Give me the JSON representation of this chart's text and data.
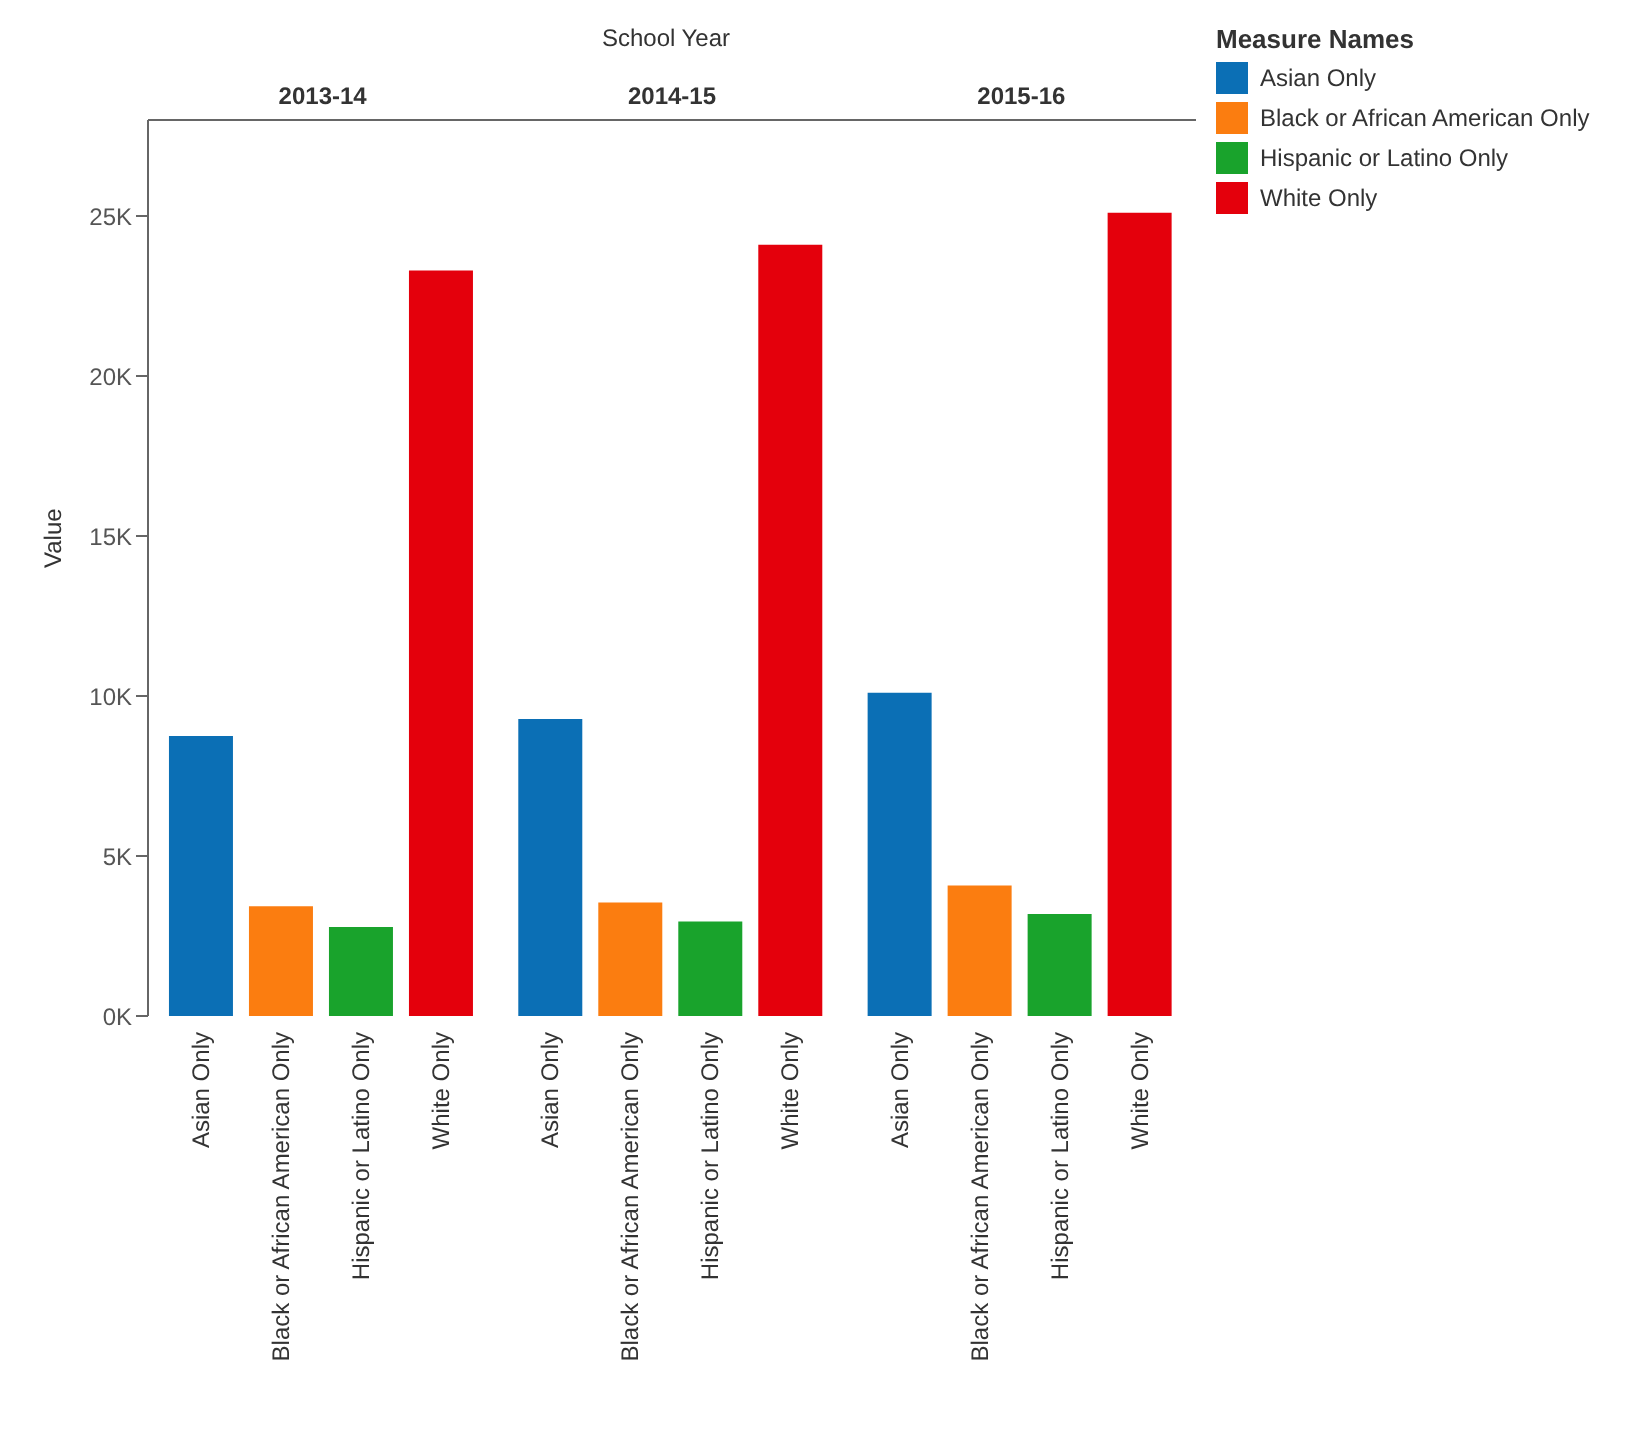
{
  "chart_data": {
    "type": "bar",
    "xlabel": "School Year",
    "ylabel": "Value",
    "legend_title": "Measure Names",
    "legend": "top right",
    "grid": false,
    "categories": [
      "2013-14",
      "2014-15",
      "2015-16"
    ],
    "series": [
      {
        "name": "Asian Only",
        "color": "#0b6fb5",
        "values": [
          8750,
          9280,
          10100
        ]
      },
      {
        "name": "Black or African American Only",
        "color": "#fb7d10",
        "values": [
          3430,
          3550,
          4080
        ]
      },
      {
        "name": "Hispanic or Latino Only",
        "color": "#19a32c",
        "values": [
          2780,
          2950,
          3190
        ]
      },
      {
        "name": "White Only",
        "color": "#e4000c",
        "values": [
          23300,
          24100,
          25100
        ]
      }
    ],
    "ylim": [
      0,
      28000
    ],
    "yticks": [
      {
        "value": 0,
        "label": "0K"
      },
      {
        "value": 5000,
        "label": "5K"
      },
      {
        "value": 10000,
        "label": "10K"
      },
      {
        "value": 15000,
        "label": "15K"
      },
      {
        "value": 20000,
        "label": "20K"
      },
      {
        "value": 25000,
        "label": "25K"
      }
    ]
  }
}
